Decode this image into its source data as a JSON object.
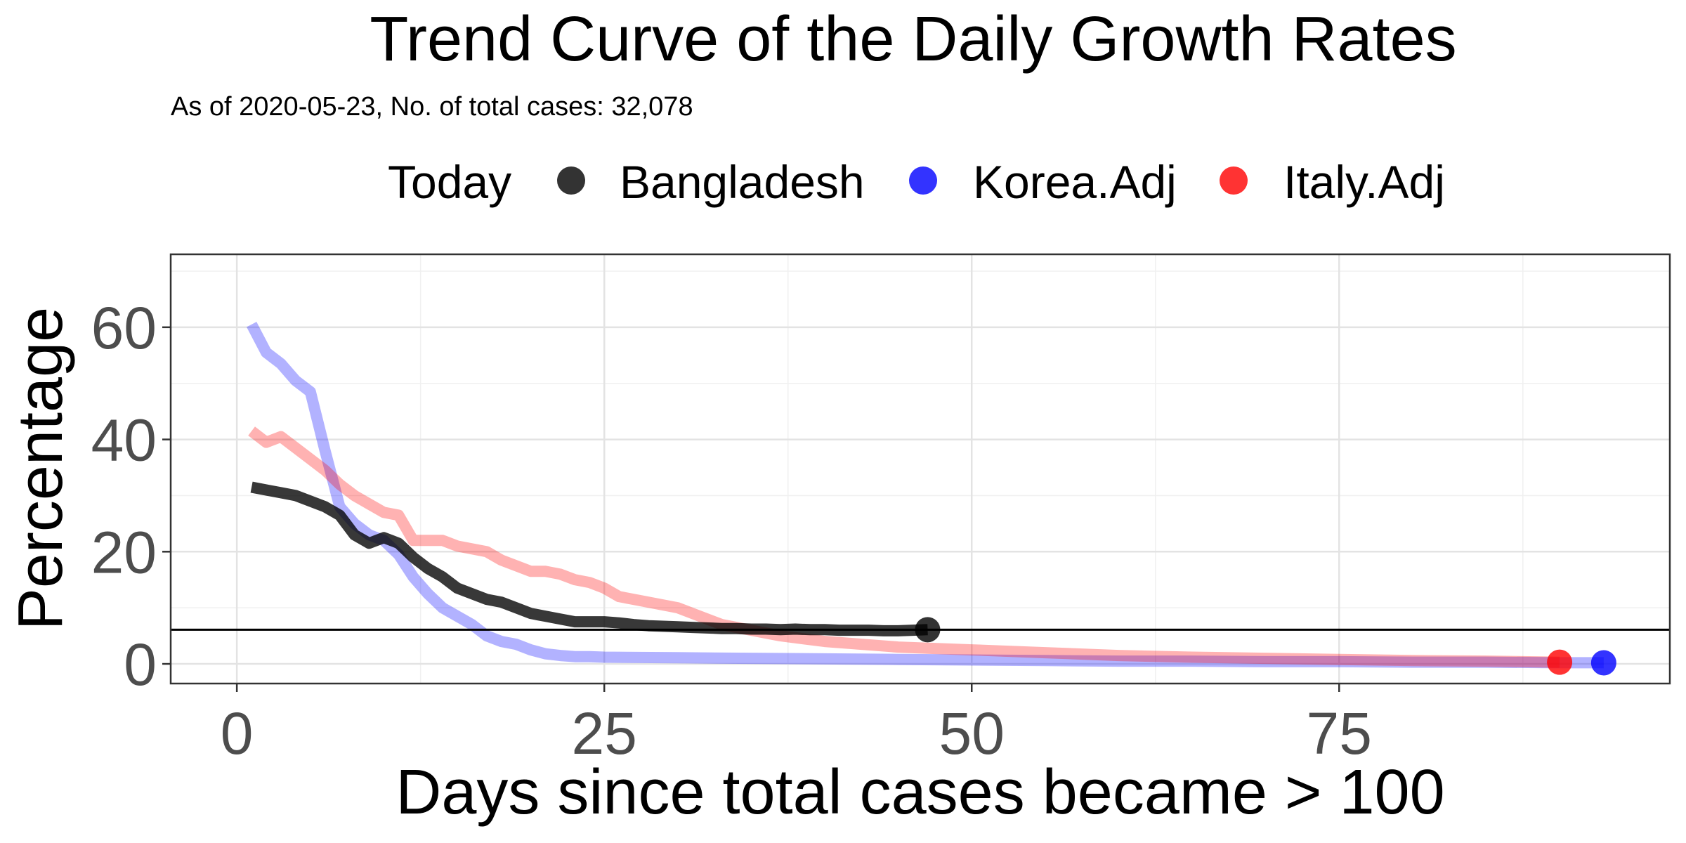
{
  "chart_data": {
    "type": "line",
    "title": "Trend Curve of the Daily Growth Rates",
    "subtitle": "As of 2020-05-23, No. of total cases: 32,078",
    "xlabel": "Days since total cases became > 100",
    "ylabel": "Percentage",
    "xlim": [
      -4.5,
      97.5
    ],
    "ylim": [
      -3.5,
      73
    ],
    "x_ticks": [
      0,
      25,
      50,
      75
    ],
    "y_ticks": [
      0,
      20,
      40,
      60
    ],
    "grid": true,
    "legend_title": "Today",
    "legend_position": "top",
    "reference_line_y": 6.1,
    "series": [
      {
        "name": "Korea.Adj",
        "color": "#0000ff",
        "x": [
          1,
          2,
          3,
          4,
          5,
          6,
          7,
          8,
          9,
          10,
          11,
          12,
          13,
          14,
          15,
          16,
          17,
          18,
          19,
          20,
          21,
          22,
          23,
          24,
          25,
          30,
          35,
          40,
          45,
          50,
          55,
          60,
          65,
          70,
          75,
          80,
          85,
          90,
          93
        ],
        "values": [
          60.5,
          55.5,
          53.5,
          50.5,
          48.5,
          38,
          28,
          25,
          23,
          22,
          19.5,
          15.5,
          12.5,
          10,
          8.5,
          7,
          5,
          4,
          3.5,
          2.5,
          1.8,
          1.5,
          1.3,
          1.3,
          1.2,
          1.1,
          1.0,
          0.9,
          0.8,
          0.7,
          0.6,
          0.5,
          0.5,
          0.4,
          0.4,
          0.3,
          0.3,
          0.2,
          0.2
        ],
        "end_point": {
          "x": 93,
          "y": 0.2
        }
      },
      {
        "name": "Italy.Adj",
        "color": "#ff0000",
        "x": [
          1,
          2,
          3,
          4,
          5,
          6,
          7,
          8,
          9,
          10,
          11,
          12,
          13,
          14,
          15,
          16,
          17,
          18,
          19,
          20,
          21,
          22,
          23,
          24,
          25,
          26,
          27,
          28,
          29,
          30,
          31,
          32,
          33,
          34,
          35,
          37,
          40,
          45,
          50,
          55,
          60,
          65,
          70,
          75,
          80,
          85,
          90
        ],
        "values": [
          41.5,
          39.5,
          40.5,
          38.5,
          36.5,
          34.5,
          32,
          30,
          28.5,
          27,
          26.5,
          22,
          22,
          22,
          21,
          20.5,
          20,
          18.5,
          17.5,
          16.5,
          16.5,
          16,
          15,
          14.5,
          13.5,
          12,
          11.5,
          11,
          10.5,
          10,
          9,
          8,
          7,
          6.5,
          6,
          5,
          4,
          3,
          2.5,
          2,
          1.5,
          1.2,
          1,
          0.8,
          0.6,
          0.5,
          0.3
        ],
        "end_point": {
          "x": 90,
          "y": 0.3
        }
      },
      {
        "name": "Bangladesh",
        "color": "#000000",
        "x": [
          1,
          2,
          3,
          4,
          5,
          6,
          7,
          8,
          9,
          10,
          11,
          12,
          13,
          14,
          15,
          16,
          17,
          18,
          19,
          20,
          21,
          22,
          23,
          24,
          25,
          26,
          27,
          28,
          29,
          30,
          31,
          32,
          33,
          34,
          35,
          36,
          37,
          38,
          39,
          40,
          41,
          42,
          43,
          44,
          45,
          46,
          47
        ],
        "values": [
          31.5,
          31,
          30.5,
          30,
          29,
          28,
          26.5,
          23,
          21.5,
          22.5,
          21.5,
          19,
          17,
          15.5,
          13.5,
          12.5,
          11.5,
          11,
          10,
          9,
          8.5,
          8,
          7.5,
          7.5,
          7.5,
          7.3,
          7,
          6.8,
          6.7,
          6.6,
          6.5,
          6.4,
          6.3,
          6.3,
          6.2,
          6.2,
          6.1,
          6.2,
          6.1,
          6.1,
          6.0,
          6.0,
          6.0,
          5.9,
          5.9,
          6.0,
          6.1
        ],
        "end_point": {
          "x": 47,
          "y": 6.1
        }
      }
    ],
    "legend_order": [
      "Bangladesh",
      "Korea.Adj",
      "Italy.Adj"
    ]
  }
}
